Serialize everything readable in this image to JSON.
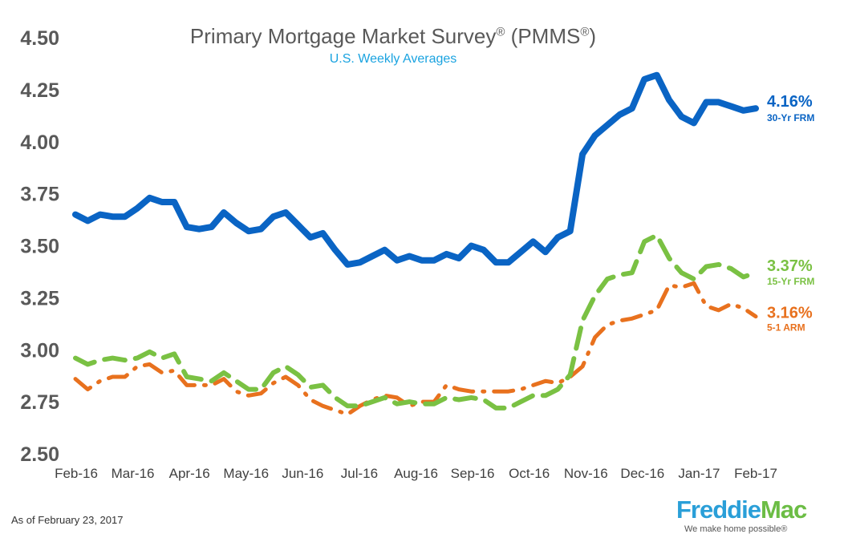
{
  "title_main": "Primary Mortgage Market Survey",
  "title_reg": "®",
  "title_paren_open": " (PMMS",
  "title_paren_close": ")",
  "subtitle": "U.S. Weekly Averages",
  "footer": "As of February 23, 2017",
  "logo": {
    "freddie": "Freddie",
    "mac": "Mac",
    "tagline": "We make home possible®"
  },
  "chart_data": {
    "type": "line",
    "title": "Primary Mortgage Market Survey® (PMMS®)",
    "subtitle": "U.S. Weekly Averages",
    "xlabel": "",
    "ylabel": "",
    "ylim": [
      2.5,
      4.5
    ],
    "y_ticks": [
      "4.50",
      "4.25",
      "4.00",
      "3.75",
      "3.50",
      "3.25",
      "3.00",
      "2.75",
      "2.50"
    ],
    "x_tick_labels": [
      "Feb-16",
      "Mar-16",
      "Apr-16",
      "May-16",
      "Jun-16",
      "Jul-16",
      "Aug-16",
      "Sep-16",
      "Oct-16",
      "Nov-16",
      "Dec-16",
      "Jan-17",
      "Feb-17"
    ],
    "x": [
      "2016-02-04",
      "2016-02-11",
      "2016-02-18",
      "2016-02-25",
      "2016-03-03",
      "2016-03-10",
      "2016-03-17",
      "2016-03-24",
      "2016-03-31",
      "2016-04-07",
      "2016-04-14",
      "2016-04-21",
      "2016-04-28",
      "2016-05-05",
      "2016-05-12",
      "2016-05-19",
      "2016-05-26",
      "2016-06-02",
      "2016-06-09",
      "2016-06-16",
      "2016-06-23",
      "2016-06-30",
      "2016-07-07",
      "2016-07-14",
      "2016-07-21",
      "2016-07-28",
      "2016-08-04",
      "2016-08-11",
      "2016-08-18",
      "2016-08-25",
      "2016-09-01",
      "2016-09-08",
      "2016-09-15",
      "2016-09-22",
      "2016-09-29",
      "2016-10-06",
      "2016-10-13",
      "2016-10-20",
      "2016-10-27",
      "2016-11-03",
      "2016-11-10",
      "2016-11-17",
      "2016-11-23",
      "2016-12-01",
      "2016-12-08",
      "2016-12-15",
      "2016-12-22",
      "2016-12-29",
      "2017-01-05",
      "2017-01-12",
      "2017-01-19",
      "2017-01-26",
      "2017-02-02",
      "2017-02-09",
      "2017-02-16",
      "2017-02-23"
    ],
    "grid": false,
    "legend": "none; series labels at right end of each line",
    "series": [
      {
        "name": "30-Yr FRM",
        "end_value": "4.16%",
        "color": "#0a64c4",
        "style": "solid",
        "values": [
          3.65,
          3.62,
          3.65,
          3.64,
          3.64,
          3.68,
          3.73,
          3.71,
          3.71,
          3.59,
          3.58,
          3.59,
          3.66,
          3.61,
          3.57,
          3.58,
          3.64,
          3.66,
          3.6,
          3.54,
          3.56,
          3.48,
          3.41,
          3.42,
          3.45,
          3.48,
          3.43,
          3.45,
          3.43,
          3.43,
          3.46,
          3.44,
          3.5,
          3.48,
          3.42,
          3.42,
          3.47,
          3.52,
          3.47,
          3.54,
          3.57,
          3.94,
          4.03,
          4.08,
          4.13,
          4.16,
          4.3,
          4.32,
          4.2,
          4.12,
          4.09,
          4.19,
          4.19,
          4.17,
          4.15,
          4.16
        ]
      },
      {
        "name": "15-Yr FRM",
        "end_value": "3.37%",
        "color": "#7ac143",
        "style": "dashed",
        "values": [
          2.96,
          2.93,
          2.95,
          2.96,
          2.95,
          2.96,
          2.99,
          2.96,
          2.98,
          2.87,
          2.86,
          2.85,
          2.89,
          2.85,
          2.81,
          2.81,
          2.89,
          2.92,
          2.88,
          2.82,
          2.83,
          2.77,
          2.73,
          2.73,
          2.75,
          2.77,
          2.74,
          2.75,
          2.74,
          2.74,
          2.77,
          2.76,
          2.77,
          2.76,
          2.72,
          2.72,
          2.75,
          2.78,
          2.78,
          2.81,
          2.88,
          3.14,
          3.26,
          3.34,
          3.36,
          3.37,
          3.52,
          3.55,
          3.44,
          3.37,
          3.34,
          3.4,
          3.41,
          3.39,
          3.35,
          3.37
        ]
      },
      {
        "name": "5-1 ARM",
        "end_value": "3.16%",
        "color": "#e8711e",
        "style": "dash-dot",
        "values": [
          2.86,
          2.81,
          2.85,
          2.87,
          2.87,
          2.92,
          2.93,
          2.89,
          2.9,
          2.83,
          2.83,
          2.83,
          2.86,
          2.8,
          2.78,
          2.79,
          2.84,
          2.87,
          2.83,
          2.76,
          2.73,
          2.71,
          2.69,
          2.73,
          2.76,
          2.78,
          2.77,
          2.73,
          2.75,
          2.75,
          2.83,
          2.81,
          2.8,
          2.8,
          2.8,
          2.8,
          2.81,
          2.83,
          2.85,
          2.84,
          2.87,
          2.92,
          3.06,
          3.12,
          3.14,
          3.15,
          3.17,
          3.19,
          3.31,
          3.3,
          3.32,
          3.21,
          3.19,
          3.22,
          3.2,
          3.16
        ]
      }
    ]
  }
}
